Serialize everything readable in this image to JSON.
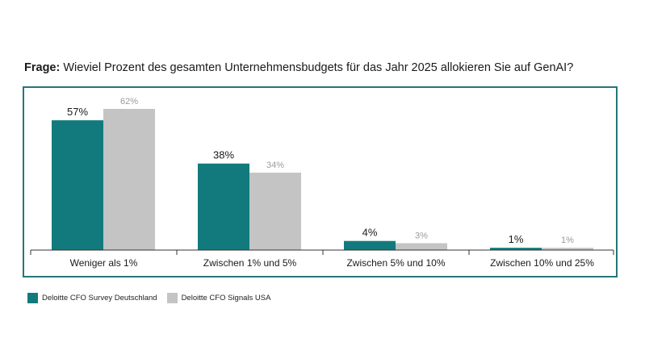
{
  "question": {
    "prefix": "Frage:",
    "text": " Wieviel Prozent des gesamten Unternehmensbudgets für das Jahr 2025 allokieren Sie auf GenAI?"
  },
  "colors": {
    "frame": "#26767a",
    "axis": "#333333"
  },
  "chart_data": {
    "type": "bar",
    "title": "Frage: Wieviel Prozent des gesamten Unternehmensbudgets für das Jahr 2025 allokieren Sie auf GenAI?",
    "categories": [
      "Weniger als 1%",
      "Zwischen 1% und 5%",
      "Zwischen 5% und 10%",
      "Zwischen 10% und 25%"
    ],
    "series": [
      {
        "name": "Deloitte CFO Survey Deutschland",
        "values": [
          57,
          38,
          4,
          1
        ],
        "labels": [
          "57%",
          "38%",
          "4%",
          "1%"
        ],
        "color": "#127a7c",
        "label_color": "#1a1a1a"
      },
      {
        "name": "Deloitte CFO Signals USA",
        "values": [
          62,
          34,
          3,
          1
        ],
        "labels": [
          "62%",
          "34%",
          "3%",
          "1%"
        ],
        "color": "#c4c4c4",
        "label_color": "#9a9a9a"
      }
    ],
    "ylim": [
      0,
      70
    ],
    "legend": "bottom-left"
  }
}
